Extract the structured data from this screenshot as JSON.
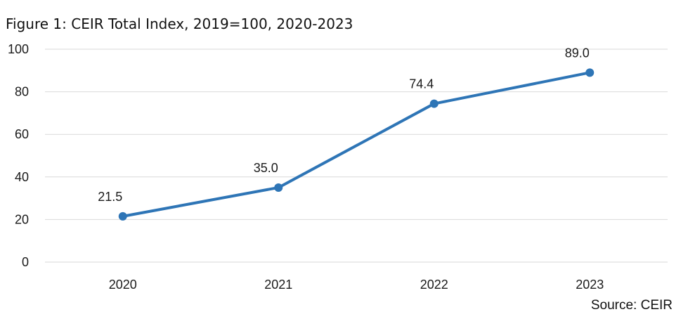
{
  "title": "Figure 1: CEIR Total Index, 2019=100, 2020-2023",
  "source": "Source: CEIR",
  "chart_data": {
    "type": "line",
    "title": "Figure 1: CEIR Total Index, 2019=100, 2020-2023",
    "categories": [
      "2020",
      "2021",
      "2022",
      "2023"
    ],
    "series": [
      {
        "values": [
          21.5,
          35.0,
          74.4,
          89.0
        ],
        "labels": [
          "21.5",
          "35.0",
          "74.4",
          "89.0"
        ],
        "color": "#2E75B6"
      }
    ],
    "ylim": [
      0,
      100
    ],
    "yticks": [
      0,
      20,
      40,
      60,
      80,
      100
    ],
    "ytick_labels": [
      "0",
      "20",
      "40",
      "60",
      "80",
      "100"
    ],
    "grid": true,
    "gridline_color": "#d9d9d9",
    "xlabel": "",
    "ylabel": ""
  }
}
